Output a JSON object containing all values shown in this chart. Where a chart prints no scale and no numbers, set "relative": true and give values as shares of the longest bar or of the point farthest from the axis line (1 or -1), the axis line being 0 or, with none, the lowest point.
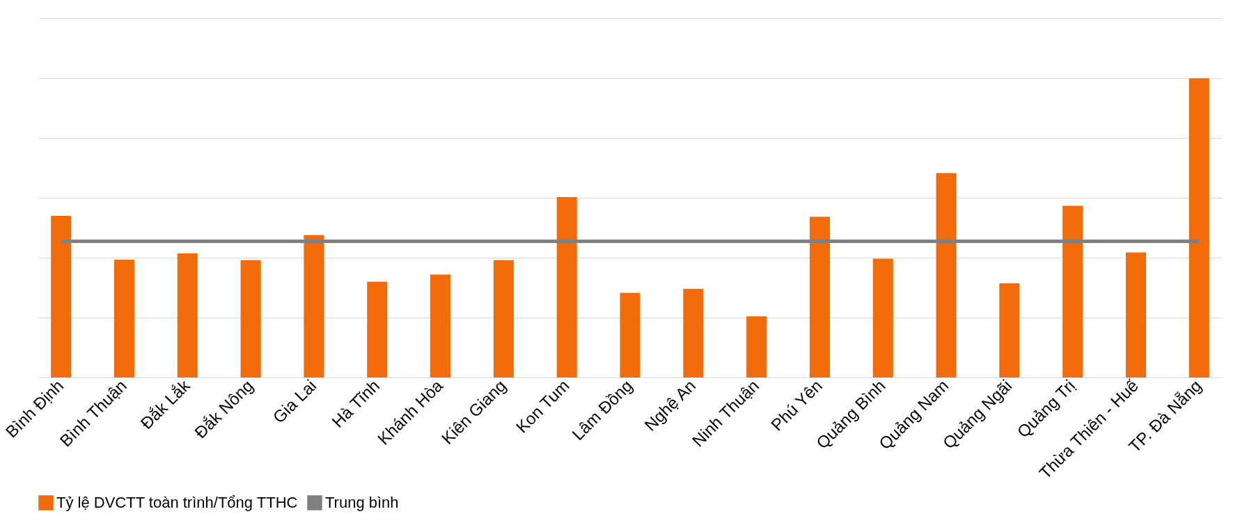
{
  "chart_data": {
    "type": "bar",
    "relative": true,
    "grid": "y",
    "legend": "bottom",
    "categories": [
      "Bình Định",
      "Bình Thuận",
      "Đắk Lắk",
      "Đắk Nông",
      "Gia Lai",
      "Hà Tĩnh",
      "Khánh Hòa",
      "Kiên Giang",
      "Kon Tum",
      "Lâm Đồng",
      "Nghệ An",
      "Ninh Thuận",
      "Phú Yên",
      "Quảng Bình",
      "Quảng Nam",
      "Quảng Ngãi",
      "Quảng Trị",
      "Thừa Thiên - Huế",
      "TP. Đà Nẵng"
    ],
    "series": [
      {
        "name": "Tỷ lệ DVCTT toàn trình/Tổng TTHC",
        "color": "#f26b0a",
        "values": [
          0.54,
          0.394,
          0.415,
          0.392,
          0.476,
          0.32,
          0.344,
          0.392,
          0.603,
          0.283,
          0.296,
          0.204,
          0.537,
          0.397,
          0.683,
          0.315,
          0.574,
          0.418,
          1
        ]
      },
      {
        "name": "Trung bình",
        "type": "line",
        "color": "#808080",
        "values": [
          0.455,
          0.455,
          0.455,
          0.455,
          0.455,
          0.455,
          0.455,
          0.455,
          0.455,
          0.455,
          0.455,
          0.455,
          0.455,
          0.455,
          0.455,
          0.455,
          0.455,
          0.455,
          0.455
        ]
      }
    ]
  }
}
